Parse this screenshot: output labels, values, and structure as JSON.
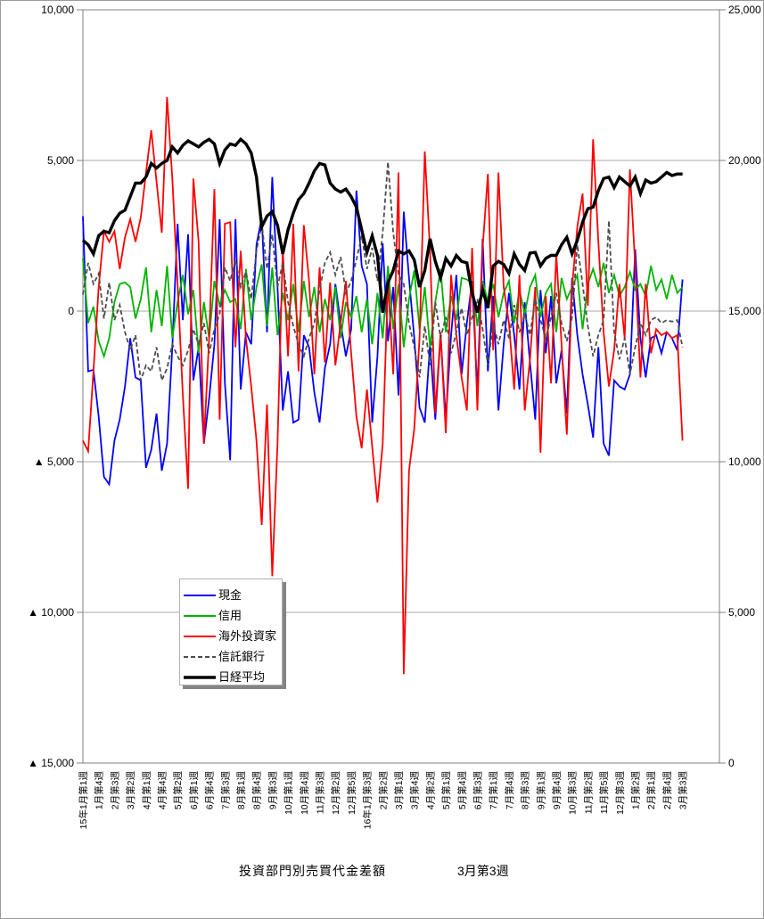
{
  "figure": {
    "background": "#ffffff",
    "outer_border_color": "#9b9b9b",
    "gridline_color": "#a8a8a8",
    "axis_frame_color": "#808080",
    "bottom_caption": "投資部門別売買代金差額",
    "bottom_week_label": "3月第3週"
  },
  "chart_data": {
    "type": "line",
    "title": "投資部門別売買代金差額",
    "latest_week_annotation": "3月第3週",
    "grid": true,
    "legend_position": "floating box, center-left of plot",
    "left_axis": {
      "min": -15000,
      "max": 10000,
      "step": 5000,
      "tick_labels": [
        "10,000",
        "5,000",
        "0",
        "▲ 5,000",
        "▲ 10,000",
        "▲ 15,000"
      ]
    },
    "right_axis": {
      "min": 0,
      "max": 25000,
      "step": 5000,
      "tick_labels": [
        "25,000",
        "20,000",
        "15,000",
        "10,000",
        "5,000",
        "0"
      ]
    },
    "x_axis": {
      "points": 115,
      "label_every_n_points": 3,
      "tick_labels": [
        "15年1月第1週",
        "1月第4週",
        "2月第3週",
        "3月第2週",
        "4月第1週",
        "4月第4週",
        "5月第2週",
        "6月第1週",
        "6月第4週",
        "7月第3週",
        "8月第1週",
        "8月第4週",
        "9月第3週",
        "10月第1週",
        "10月第4週",
        "11月第3週",
        "12月第2週",
        "12月第5週",
        "16年1月第3週",
        "2月第2週",
        "3月第1週",
        "3月第4週",
        "4月第2週",
        "5月第1週",
        "5月第4週",
        "6月第3週",
        "7月第1週",
        "7月第4週",
        "8月第3週",
        "9月第1週",
        "9月第4週",
        "10月第3週",
        "11月第2週",
        "11月第5週",
        "12月第3週",
        "1月第2週",
        "2月第1週",
        "2月第4週",
        "3月第3週"
      ]
    },
    "series": [
      {
        "name": "現金",
        "slug": "cash",
        "color": "#0000ff",
        "style": "solid",
        "width": 1.8,
        "axis": "left",
        "values": [
          3150,
          -2000,
          -1950,
          -3500,
          -5500,
          -5750,
          -4300,
          -3600,
          -2500,
          -900,
          -2200,
          -2300,
          -5200,
          -4600,
          -3400,
          -5300,
          -4400,
          -1200,
          2900,
          -300,
          2550,
          -2300,
          -1200,
          -4400,
          -2900,
          -1100,
          3050,
          -2400,
          -4950,
          3050,
          -2600,
          -700,
          -1100,
          2200,
          3100,
          -700,
          4450,
          800,
          -3300,
          -2000,
          -3700,
          -3600,
          -800,
          -1200,
          -2700,
          -3700,
          -1900,
          -1100,
          900,
          -400,
          -1500,
          -600,
          4000,
          1500,
          900,
          -3700,
          -1500,
          2250,
          -1000,
          800,
          -2800,
          3300,
          1100,
          -900,
          -3200,
          -3700,
          -1100,
          -3600,
          -800,
          -3600,
          -800,
          1200,
          -2100,
          -400,
          1000,
          -2700,
          2400,
          -2000,
          500,
          -3300,
          -1100,
          600,
          -800,
          -2600,
          300,
          -1700,
          -3600,
          700,
          -1400,
          500,
          -2400,
          -1300,
          -3400,
          1100,
          -800,
          -2100,
          -3100,
          -4200,
          -1200,
          -4400,
          -4800,
          -2300,
          -2500,
          -2600,
          -2100,
          2050,
          -900,
          -2200,
          -900,
          -800,
          -1400,
          -700,
          -900,
          -1300,
          1050
        ]
      },
      {
        "name": "信用",
        "slug": "margin",
        "color": "#00b400",
        "style": "solid",
        "width": 1.8,
        "axis": "left",
        "values": [
          1750,
          -400,
          150,
          -1000,
          -1500,
          -900,
          300,
          900,
          950,
          800,
          -250,
          400,
          1450,
          -700,
          700,
          -500,
          1500,
          -900,
          300,
          1200,
          -100,
          700,
          -1400,
          300,
          -900,
          1000,
          200,
          700,
          300,
          400,
          -600,
          1400,
          -300,
          800,
          1550,
          -500,
          1450,
          -800,
          600,
          -300,
          900,
          -700,
          1000,
          -200,
          800,
          -700,
          400,
          -300,
          800,
          -900,
          300,
          -200,
          500,
          -700,
          400,
          -1100,
          600,
          -900,
          1500,
          -600,
          900,
          -1200,
          400,
          1350,
          -600,
          800,
          -1200,
          300,
          1400,
          -700,
          500,
          -300,
          1100,
          1050,
          900,
          -500,
          1000,
          300,
          900,
          -200,
          600,
          1000,
          -400,
          700,
          -100,
          800,
          1200,
          -200,
          600,
          900,
          -700,
          1100,
          400,
          800,
          1200,
          -600,
          900,
          1400,
          800,
          1600,
          600,
          1200,
          500,
          800,
          1300,
          700,
          900,
          500,
          1500,
          700,
          1050,
          400,
          1200,
          600,
          800
        ]
      },
      {
        "name": "海外投資家",
        "slug": "foreign-investors",
        "color": "#ff0000",
        "style": "solid",
        "width": 1.8,
        "axis": "left",
        "values": [
          -4300,
          -4650,
          -2000,
          800,
          2650,
          2300,
          2650,
          1400,
          2450,
          3050,
          2300,
          3100,
          4600,
          6000,
          4300,
          2600,
          7100,
          4400,
          900,
          -2800,
          -5900,
          4400,
          2300,
          -4400,
          -900,
          4050,
          -3600,
          2900,
          2950,
          -1200,
          2000,
          -900,
          -2500,
          -4300,
          -7100,
          -3100,
          -8800,
          -4400,
          2050,
          -1500,
          2900,
          -2000,
          2850,
          1000,
          -2100,
          1450,
          -1700,
          950,
          -1800,
          -400,
          1000,
          -1400,
          -3500,
          -4550,
          -2600,
          -4500,
          -6350,
          -4400,
          1000,
          -2100,
          4600,
          -12050,
          -5300,
          -3900,
          -900,
          5300,
          2000,
          -3400,
          -700,
          -4050,
          1200,
          -800,
          -2200,
          -3300,
          2100,
          -3300,
          2100,
          4550,
          -1300,
          4600,
          800,
          -400,
          -2600,
          1200,
          -3300,
          -1600,
          800,
          -4700,
          500,
          -2400,
          1900,
          -1100,
          -4100,
          800,
          2800,
          3900,
          180,
          5700,
          2300,
          -700,
          -2500,
          -1300,
          900,
          -900,
          4700,
          1500,
          -2200,
          900,
          -1400,
          -600,
          -800,
          -700,
          -900,
          -800,
          -4300
        ]
      },
      {
        "name": "信託銀行",
        "slug": "trust-banks",
        "color": "#4d4d4d",
        "style": "dashed",
        "width": 1.8,
        "axis": "left",
        "values": [
          550,
          1600,
          900,
          1250,
          -250,
          950,
          -300,
          200,
          -700,
          -1300,
          -800,
          -2300,
          -1800,
          -2000,
          -1200,
          -2300,
          -1900,
          -1100,
          -1500,
          -1800,
          -1300,
          -600,
          -1100,
          -400,
          -1400,
          -600,
          -100,
          1450,
          1000,
          1700,
          800,
          1300,
          400,
          2000,
          2900,
          1400,
          2550,
          800,
          1600,
          300,
          -500,
          -1100,
          -1500,
          -900,
          -400,
          700,
          1600,
          1950,
          1200,
          1800,
          600,
          1000,
          1700,
          2500,
          1400,
          2100,
          1000,
          2600,
          4950,
          2600,
          1200,
          900,
          -400,
          -1200,
          -2200,
          -500,
          -1800,
          300,
          -900,
          -200,
          -1400,
          -700,
          100,
          -800,
          -200,
          400,
          -600,
          -1800,
          -400,
          -1100,
          -300,
          -900,
          200,
          -700,
          -100,
          -800,
          400,
          -300,
          -900,
          -200,
          600,
          -400,
          -1000,
          -200,
          2200,
          900,
          -500,
          -1500,
          -800,
          -300,
          3000,
          -700,
          -1600,
          -900,
          -2100,
          -1200,
          -400,
          -800,
          -300,
          -200,
          -400,
          -300,
          -350,
          -300,
          -1200
        ]
      },
      {
        "name": "日経平均",
        "slug": "nikkei-average",
        "color": "#000000",
        "style": "solid",
        "width": 3.4,
        "axis": "right",
        "values": [
          17350,
          17200,
          16900,
          17500,
          17650,
          17600,
          18000,
          18250,
          18350,
          18800,
          19250,
          19250,
          19450,
          19900,
          19750,
          19900,
          20000,
          20450,
          20250,
          20500,
          20650,
          20550,
          20450,
          20600,
          20700,
          20550,
          19900,
          20350,
          20550,
          20500,
          20700,
          20550,
          20250,
          19450,
          17800,
          18150,
          18300,
          17850,
          16900,
          17700,
          18250,
          18700,
          18900,
          19250,
          19650,
          19900,
          19850,
          19250,
          19050,
          18950,
          19050,
          18800,
          18450,
          17700,
          16950,
          17500,
          16850,
          14950,
          15950,
          16350,
          17000,
          16900,
          17000,
          16700,
          15800,
          16350,
          17400,
          16650,
          16100,
          16750,
          16500,
          16850,
          16650,
          16600,
          15600,
          14950,
          15700,
          15100,
          16500,
          16650,
          16550,
          16250,
          16900,
          16550,
          16350,
          16925,
          16950,
          16500,
          16750,
          16850,
          16850,
          17200,
          17450,
          16900,
          17350,
          17950,
          18400,
          18450,
          19000,
          19400,
          19450,
          19100,
          19450,
          19300,
          19150,
          19450,
          18900,
          19350,
          19250,
          19300,
          19450,
          19600,
          19500,
          19550,
          19550
        ]
      }
    ]
  }
}
